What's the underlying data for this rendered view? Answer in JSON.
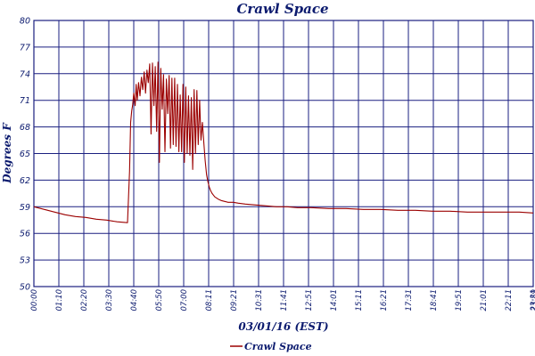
{
  "colors": {
    "grid": "#1a1f80",
    "series": "#9b0000",
    "text": "#0b1a6e"
  },
  "chart_data": {
    "type": "line",
    "title": "Crawl Space",
    "xlabel": "03/01/16 (EST)",
    "ylabel": "Degrees F",
    "ylim": [
      50,
      80
    ],
    "yticks": [
      "50",
      "53",
      "56",
      "59",
      "62",
      "65",
      "68",
      "71",
      "74",
      "77",
      "80"
    ],
    "xlim": [
      0,
      1440
    ],
    "xticks": [
      "00:00",
      "01:10",
      "02:20",
      "03:30",
      "04:40",
      "05:50",
      "07:00",
      "08:11",
      "09:21",
      "10:31",
      "11:41",
      "12:51",
      "14:01",
      "15:11",
      "16:21",
      "17:31",
      "18:41",
      "19:51",
      "21:01",
      "22:11",
      "23:21",
      "23:59"
    ],
    "grid": true,
    "legend_position": "bottom-center",
    "series": [
      {
        "name": "Crawl Space",
        "x_minutes": [
          0,
          30,
          60,
          90,
          120,
          150,
          180,
          210,
          240,
          270,
          276,
          279,
          282,
          285,
          288,
          292,
          295,
          298,
          302,
          306,
          310,
          314,
          318,
          322,
          326,
          330,
          334,
          338,
          342,
          346,
          350,
          354,
          358,
          362,
          366,
          370,
          374,
          378,
          382,
          386,
          390,
          394,
          398,
          402,
          406,
          410,
          414,
          418,
          422,
          426,
          430,
          434,
          438,
          442,
          446,
          450,
          454,
          458,
          462,
          466,
          470,
          474,
          478,
          482,
          486,
          490,
          494,
          498,
          502,
          506,
          510,
          514,
          518,
          522,
          526,
          530,
          534,
          540,
          550,
          560,
          575,
          590,
          610,
          640,
          670,
          700,
          730,
          760,
          800,
          850,
          900,
          950,
          1000,
          1050,
          1100,
          1150,
          1200,
          1250,
          1300,
          1350,
          1400,
          1440
        ],
        "values": [
          59.0,
          58.7,
          58.4,
          58.1,
          57.9,
          57.8,
          57.6,
          57.5,
          57.3,
          57.2,
          63,
          68.5,
          69.8,
          70.5,
          71.8,
          70.4,
          72.8,
          71.0,
          73.0,
          71.5,
          73.6,
          72.2,
          74.2,
          71.8,
          74.4,
          73.0,
          75.1,
          67.2,
          75.2,
          70.4,
          74.8,
          67.5,
          75.3,
          64.0,
          74.6,
          70.0,
          73.9,
          65.2,
          73.4,
          69.5,
          73.8,
          65.6,
          73.5,
          66.0,
          73.5,
          65.8,
          72.8,
          65.2,
          71.6,
          65.2,
          72.8,
          64.0,
          72.5,
          65.0,
          71.5,
          64.8,
          71.3,
          63.2,
          72.2,
          65.0,
          72.1,
          66.0,
          71.0,
          66.5,
          68.5,
          66.2,
          64.2,
          62.6,
          61.8,
          61.2,
          60.8,
          60.5,
          60.3,
          60.1,
          60.0,
          59.9,
          59.8,
          59.7,
          59.6,
          59.5,
          59.5,
          59.4,
          59.3,
          59.2,
          59.1,
          59.0,
          59.0,
          58.9,
          58.9,
          58.8,
          58.8,
          58.7,
          58.7,
          58.6,
          58.6,
          58.5,
          58.5,
          58.4,
          58.4,
          58.4,
          58.4,
          58.3
        ]
      }
    ]
  }
}
